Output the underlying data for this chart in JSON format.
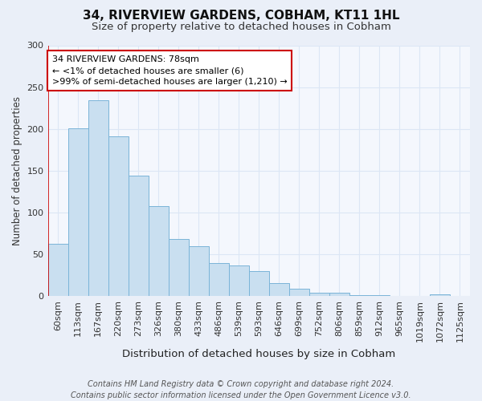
{
  "title": "34, RIVERVIEW GARDENS, COBHAM, KT11 1HL",
  "subtitle": "Size of property relative to detached houses in Cobham",
  "xlabel": "Distribution of detached houses by size in Cobham",
  "ylabel": "Number of detached properties",
  "bins": [
    "60sqm",
    "113sqm",
    "167sqm",
    "220sqm",
    "273sqm",
    "326sqm",
    "380sqm",
    "433sqm",
    "486sqm",
    "539sqm",
    "593sqm",
    "646sqm",
    "699sqm",
    "752sqm",
    "806sqm",
    "859sqm",
    "912sqm",
    "965sqm",
    "1019sqm",
    "1072sqm",
    "1125sqm"
  ],
  "values": [
    63,
    201,
    234,
    191,
    144,
    108,
    68,
    60,
    40,
    37,
    30,
    16,
    9,
    4,
    4,
    1,
    1,
    0,
    0,
    2,
    0
  ],
  "bar_color": "#c9dff0",
  "bar_edge_color": "#7ab4d8",
  "annotation_box_text": "34 RIVERVIEW GARDENS: 78sqm\n← <1% of detached houses are smaller (6)\n>99% of semi-detached houses are larger (1,210) →",
  "annotation_box_color": "#ffffff",
  "annotation_box_edge_color": "#cc0000",
  "marker_line_color": "#cc0000",
  "marker_bin_index": 0,
  "footnote": "Contains HM Land Registry data © Crown copyright and database right 2024.\nContains public sector information licensed under the Open Government Licence v3.0.",
  "ylim": [
    0,
    300
  ],
  "yticks": [
    0,
    50,
    100,
    150,
    200,
    250,
    300
  ],
  "bg_color": "#eaeff8",
  "plot_bg_color": "#f4f7fd",
  "grid_color": "#dce6f5",
  "title_fontsize": 11,
  "subtitle_fontsize": 9.5,
  "xlabel_fontsize": 9.5,
  "ylabel_fontsize": 8.5,
  "tick_fontsize": 8,
  "annotation_fontsize": 8,
  "footnote_fontsize": 7
}
